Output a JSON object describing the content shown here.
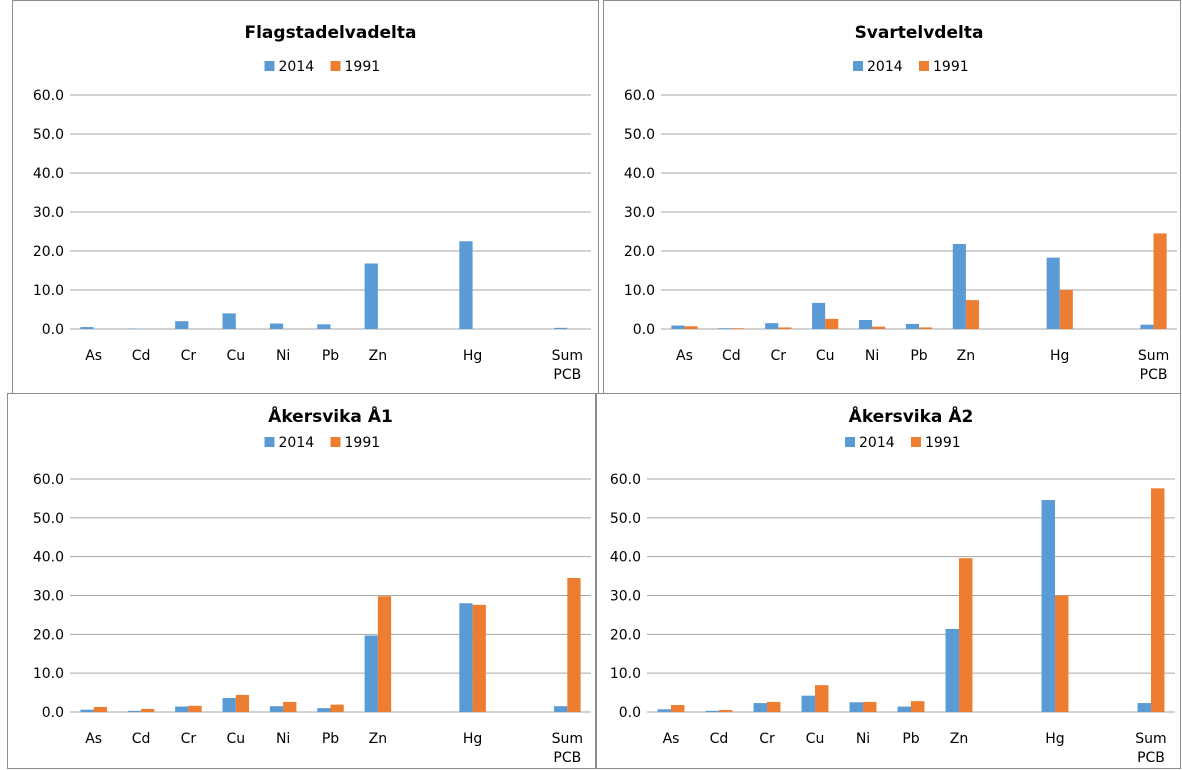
{
  "colors": {
    "s2014": "#5B9BD5",
    "s1991": "#ED7D31",
    "grid": "#a6a6a6"
  },
  "chart_data": [
    {
      "type": "bar",
      "title": "Flagstadelvadelta",
      "categories": [
        "As",
        "Cd",
        "Cr",
        "Cu",
        "Ni",
        "Pb",
        "Zn",
        "",
        "Hg",
        "",
        "Sum PCB"
      ],
      "series": [
        {
          "name": "2014",
          "values": [
            0.5,
            0.1,
            2.0,
            4.0,
            1.4,
            1.2,
            16.8,
            null,
            22.5,
            null,
            0.3
          ]
        },
        {
          "name": "1991",
          "values": [
            null,
            null,
            null,
            null,
            null,
            null,
            null,
            null,
            null,
            null,
            null
          ]
        }
      ],
      "yticks": [
        "0.0",
        "10.0",
        "20.0",
        "30.0",
        "40.0",
        "50.0",
        "60.0"
      ],
      "ylim": [
        0,
        60
      ],
      "grid": true,
      "legend": "top"
    },
    {
      "type": "bar",
      "title": "Svartelvdelta",
      "categories": [
        "As",
        "Cd",
        "Cr",
        "Cu",
        "Ni",
        "Pb",
        "Zn",
        "",
        "Hg",
        "",
        "Sum PCB"
      ],
      "series": [
        {
          "name": "2014",
          "values": [
            0.9,
            0.2,
            1.5,
            6.7,
            2.3,
            1.3,
            21.8,
            null,
            18.3,
            null,
            1.1
          ]
        },
        {
          "name": "1991",
          "values": [
            0.7,
            0.2,
            0.4,
            2.6,
            0.6,
            0.4,
            7.4,
            null,
            10.0,
            null,
            24.5
          ]
        }
      ],
      "yticks": [
        "0.0",
        "10.0",
        "20.0",
        "30.0",
        "40.0",
        "50.0",
        "60.0"
      ],
      "ylim": [
        0,
        60
      ],
      "grid": true,
      "legend": "top"
    },
    {
      "type": "bar",
      "title": "Åkersvika Å1",
      "categories": [
        "As",
        "Cd",
        "Cr",
        "Cu",
        "Ni",
        "Pb",
        "Zn",
        "",
        "Hg",
        "",
        "Sum PCB"
      ],
      "series": [
        {
          "name": "2014",
          "values": [
            0.6,
            0.3,
            1.4,
            3.6,
            1.5,
            1.0,
            19.7,
            null,
            28.0,
            null,
            1.5
          ]
        },
        {
          "name": "1991",
          "values": [
            1.3,
            0.8,
            1.6,
            4.4,
            2.6,
            1.9,
            29.8,
            null,
            27.6,
            null,
            34.5
          ]
        }
      ],
      "yticks": [
        "0.0",
        "10.0",
        "20.0",
        "30.0",
        "40.0",
        "50.0",
        "60.0"
      ],
      "ylim": [
        0,
        60
      ],
      "grid": true,
      "legend": "top"
    },
    {
      "type": "bar",
      "title": "Åkersvika Å2",
      "categories": [
        "As",
        "Cd",
        "Cr",
        "Cu",
        "Ni",
        "Pb",
        "Zn",
        "",
        "Hg",
        "",
        "Sum PCB"
      ],
      "series": [
        {
          "name": "2014",
          "values": [
            0.7,
            0.3,
            2.3,
            4.2,
            2.5,
            1.4,
            21.4,
            null,
            54.6,
            null,
            2.3
          ]
        },
        {
          "name": "1991",
          "values": [
            1.8,
            0.5,
            2.6,
            6.9,
            2.6,
            2.8,
            39.6,
            null,
            30.0,
            null,
            57.6
          ]
        }
      ],
      "yticks": [
        "0.0",
        "10.0",
        "20.0",
        "30.0",
        "40.0",
        "50.0",
        "60.0"
      ],
      "ylim": [
        0,
        60
      ],
      "grid": true,
      "legend": "top"
    }
  ]
}
